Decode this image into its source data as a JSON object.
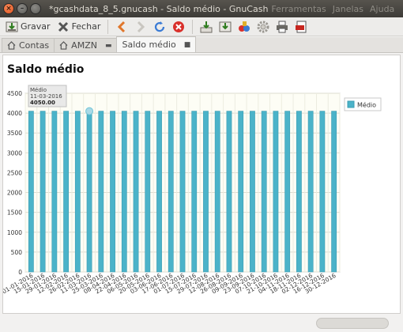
{
  "window": {
    "title": "*gcashdata_8_5.gnucash - Saldo médio - GnuCash",
    "menus": [
      "Ferramentas",
      "Janelas",
      "Ajuda"
    ]
  },
  "toolbar": {
    "save_label": "Gravar",
    "close_label": "Fechar"
  },
  "tabs": [
    {
      "label": "Contas"
    },
    {
      "label": "AMZN"
    },
    {
      "label": "Saldo médio"
    }
  ],
  "report": {
    "title": "Saldo médio",
    "tooltip": {
      "series": "Médio",
      "date": "11-03-2016",
      "value": "4050.00"
    }
  },
  "colors": {
    "bar": "#4bb3c9",
    "bar_edge": "#3a9db3",
    "plot_bg": "#fdfdf5"
  },
  "chart_data": {
    "type": "bar",
    "title": "",
    "xlabel": "",
    "ylabel": "",
    "ylim": [
      0,
      4500
    ],
    "yticks": [
      "0",
      "500",
      "1000",
      "1500",
      "2000",
      "2500",
      "3000",
      "3500",
      "4000",
      "4500"
    ],
    "legend": "top-right",
    "grid": true,
    "categories": [
      "01-01-2016",
      "15-01-2016",
      "29-01-2016",
      "12-02-2016",
      "26-02-2016",
      "11-03-2016",
      "25-03-2016",
      "08-04-2016",
      "22-04-2016",
      "06-05-2016",
      "20-05-2016",
      "03-06-2016",
      "17-06-2016",
      "01-07-2016",
      "15-07-2016",
      "29-07-2016",
      "12-08-2016",
      "26-08-2016",
      "09-09-2016",
      "23-09-2016",
      "07-10-2016",
      "21-10-2016",
      "04-11-2016",
      "18-11-2016",
      "02-12-2016",
      "16-12-2016",
      "30-12-2016"
    ],
    "series": [
      {
        "name": "Médio",
        "values": [
          4050,
          4050,
          4050,
          4050,
          4050,
          4050,
          4050,
          4050,
          4050,
          4050,
          4050,
          4050,
          4050,
          4050,
          4050,
          4050,
          4050,
          4050,
          4050,
          4050,
          4050,
          4050,
          4050,
          4050,
          4050,
          4050,
          4050
        ]
      }
    ]
  }
}
